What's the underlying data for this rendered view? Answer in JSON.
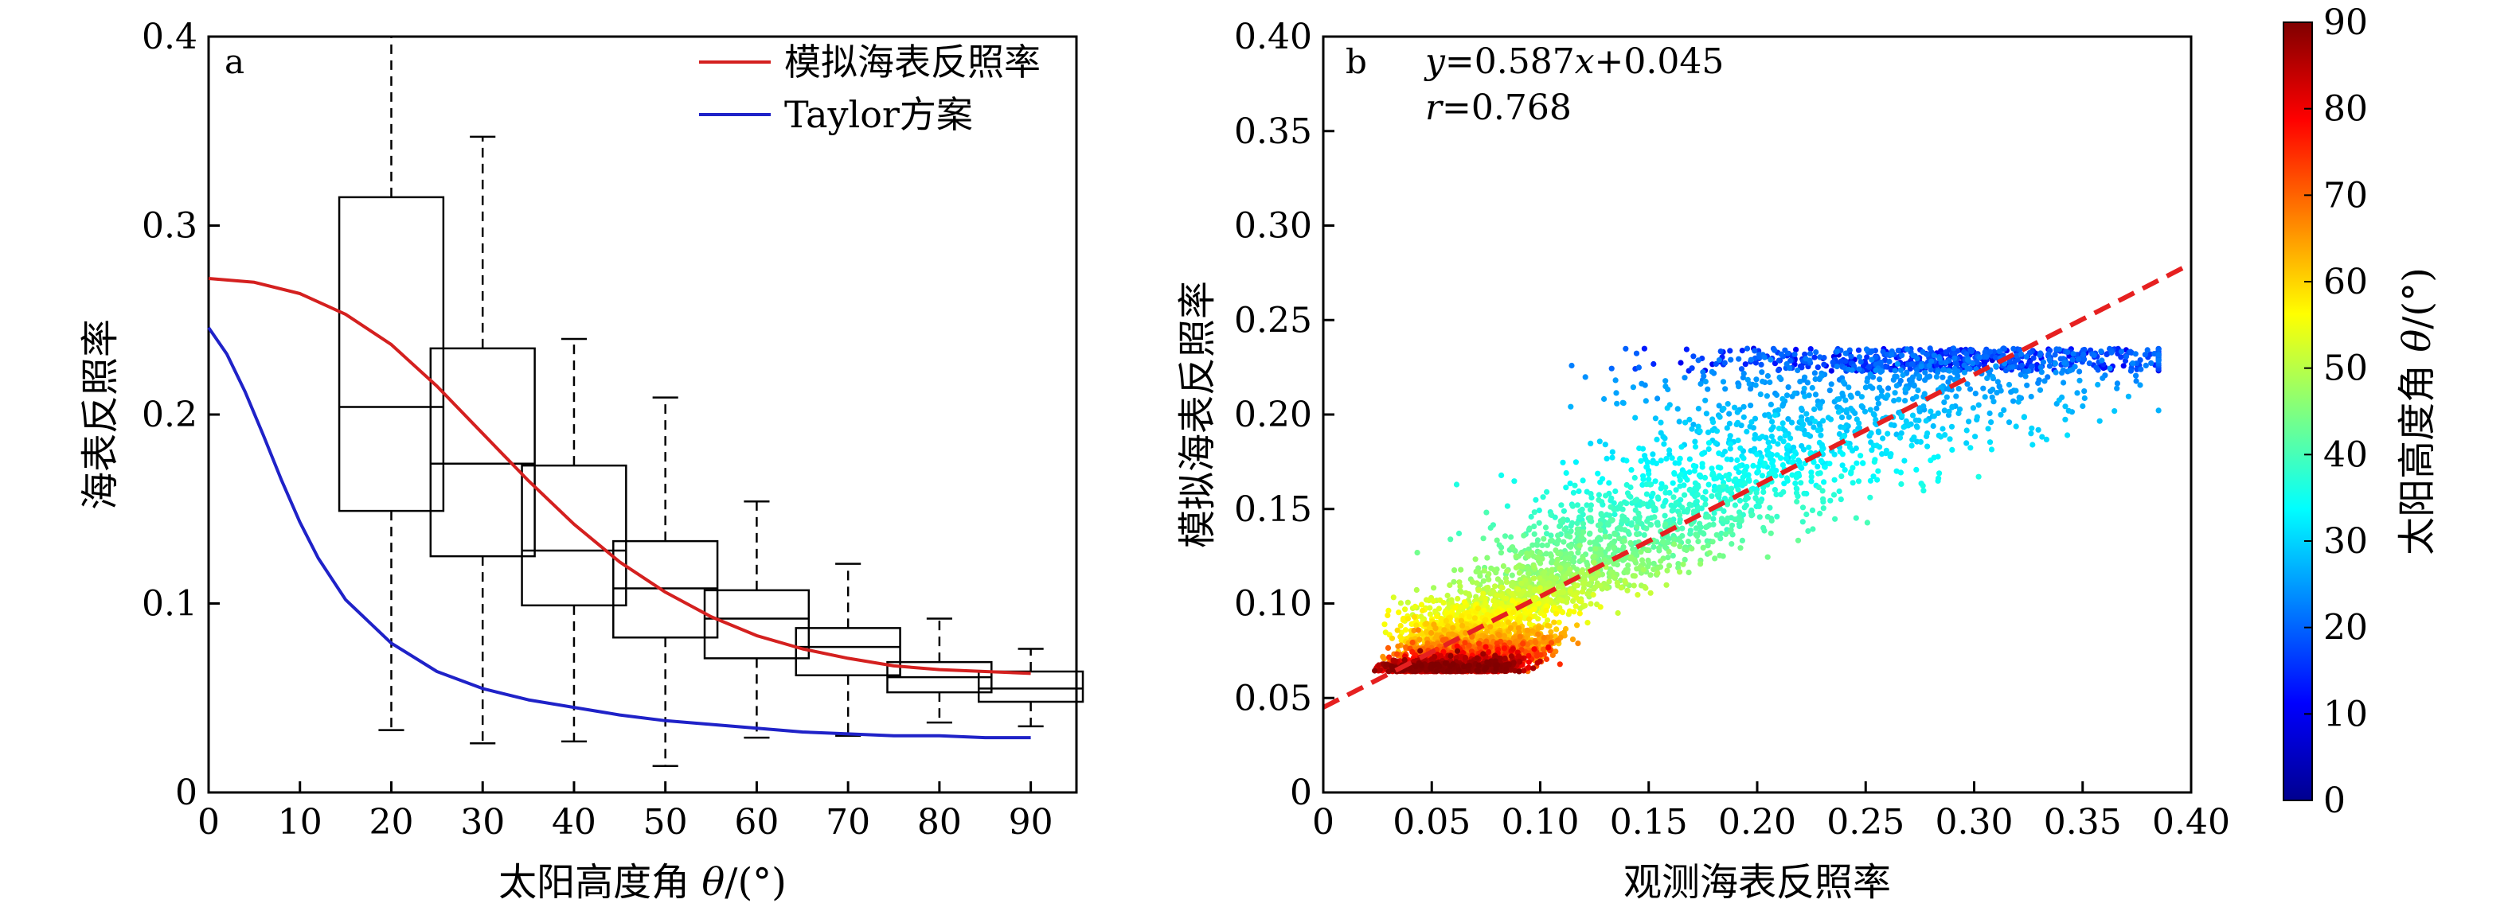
{
  "chart_data": [
    {
      "panel": "a",
      "type": "box",
      "xlabel": "太阳高度角 θ/(°)",
      "xlabel_prefix": "太阳高度角 ",
      "xlabel_theta": "θ",
      "xlabel_suffix": "/(°)",
      "ylabel": "海表反照率",
      "xlim": [
        0,
        95
      ],
      "ylim": [
        0,
        0.4
      ],
      "xticks": [
        0,
        10,
        20,
        30,
        40,
        50,
        60,
        70,
        80,
        90
      ],
      "yticks": [
        0,
        0.1,
        0.2,
        0.3,
        0.4
      ],
      "ytick_labels": [
        "0",
        "0.1",
        "0.2",
        "0.3",
        "0.4"
      ],
      "legend": [
        {
          "label": "模拟海表反照率",
          "color": "#d4201f"
        },
        {
          "label": "Taylor方案",
          "color": "#1f22c8"
        }
      ],
      "boxes": [
        {
          "x": 20,
          "whisker_low": 0.033,
          "q1": 0.149,
          "median": 0.204,
          "q3": 0.315,
          "whisker_high": 0.4
        },
        {
          "x": 30,
          "whisker_low": 0.026,
          "q1": 0.125,
          "median": 0.174,
          "q3": 0.235,
          "whisker_high": 0.347
        },
        {
          "x": 40,
          "whisker_low": 0.027,
          "q1": 0.099,
          "median": 0.128,
          "q3": 0.173,
          "whisker_high": 0.24
        },
        {
          "x": 50,
          "whisker_low": 0.014,
          "q1": 0.082,
          "median": 0.108,
          "q3": 0.133,
          "whisker_high": 0.209
        },
        {
          "x": 60,
          "whisker_low": 0.029,
          "q1": 0.071,
          "median": 0.092,
          "q3": 0.107,
          "whisker_high": 0.154
        },
        {
          "x": 70,
          "whisker_low": 0.03,
          "q1": 0.062,
          "median": 0.077,
          "q3": 0.087,
          "whisker_high": 0.121
        },
        {
          "x": 80,
          "whisker_low": 0.037,
          "q1": 0.053,
          "median": 0.061,
          "q3": 0.069,
          "whisker_high": 0.092
        },
        {
          "x": 90,
          "whisker_low": 0.035,
          "q1": 0.048,
          "median": 0.055,
          "q3": 0.064,
          "whisker_high": 0.076
        }
      ],
      "series": [
        {
          "name": "模拟海表反照率",
          "color": "#d4201f",
          "x": [
            0,
            5,
            10,
            15,
            20,
            25,
            30,
            35,
            40,
            45,
            50,
            55,
            60,
            65,
            70,
            75,
            80,
            85,
            90
          ],
          "y": [
            0.272,
            0.27,
            0.264,
            0.253,
            0.237,
            0.215,
            0.19,
            0.165,
            0.142,
            0.122,
            0.106,
            0.093,
            0.083,
            0.076,
            0.071,
            0.067,
            0.065,
            0.064,
            0.063
          ]
        },
        {
          "name": "Taylor方案",
          "color": "#1f22c8",
          "x": [
            0,
            2,
            4,
            6,
            8,
            10,
            12,
            15,
            20,
            25,
            30,
            35,
            40,
            45,
            50,
            55,
            60,
            65,
            70,
            75,
            80,
            85,
            90
          ],
          "y": [
            0.246,
            0.232,
            0.212,
            0.189,
            0.165,
            0.143,
            0.124,
            0.102,
            0.079,
            0.064,
            0.055,
            0.049,
            0.045,
            0.041,
            0.038,
            0.036,
            0.034,
            0.032,
            0.031,
            0.03,
            0.03,
            0.029,
            0.029
          ]
        }
      ]
    },
    {
      "panel": "b",
      "type": "scatter",
      "xlabel": "观测海表反照率",
      "ylabel": "模拟海表反照率",
      "xlim": [
        0,
        0.4
      ],
      "ylim": [
        0,
        0.4
      ],
      "xticks": [
        0,
        0.05,
        0.1,
        0.15,
        0.2,
        0.25,
        0.3,
        0.35,
        0.4
      ],
      "xtick_labels": [
        "0",
        "0.05",
        "0.10",
        "0.15",
        "0.20",
        "0.25",
        "0.30",
        "0.35",
        "0.40"
      ],
      "yticks": [
        0,
        0.05,
        0.1,
        0.15,
        0.2,
        0.25,
        0.3,
        0.35,
        0.4
      ],
      "ytick_labels": [
        "0",
        "0.05",
        "0.10",
        "0.15",
        "0.20",
        "0.25",
        "0.30",
        "0.35",
        "0.40"
      ],
      "fit": {
        "slope": 0.587,
        "intercept": 0.045,
        "r": 0.768,
        "color": "#e62020"
      },
      "annotation_eq": {
        "y": "y",
        "eq": "=0.587",
        "x": "x",
        "rest": "+0.045"
      },
      "annotation_r": {
        "r": "r",
        "rest": "=0.768"
      },
      "point_color_by": "太阳高度角 θ/(°)",
      "point_count": 6000
    }
  ],
  "colorbar": {
    "label": "太阳高度角 θ/(°)",
    "label_prefix": "太阳高度角 ",
    "label_theta": "θ",
    "label_suffix": "/(°)",
    "range": [
      0,
      90
    ],
    "ticks": [
      0,
      10,
      20,
      30,
      40,
      50,
      60,
      70,
      80,
      90
    ],
    "colormap": "jet"
  }
}
